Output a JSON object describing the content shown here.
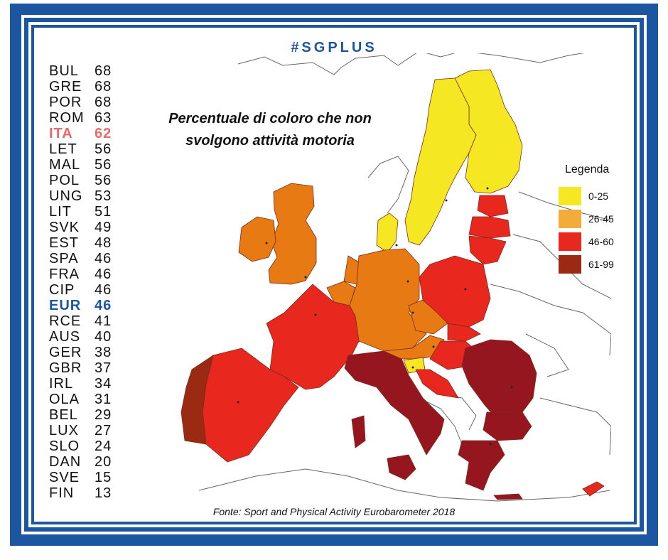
{
  "brand": "#SGPLUS",
  "title_line1": "Percentuale di coloro che non",
  "title_line2": "svolgono attività motoria",
  "source": "Fonte: Sport and Physical Activity Eurobarometer 2018",
  "ranking": [
    {
      "code": "BUL",
      "value": "68"
    },
    {
      "code": "GRE",
      "value": "68"
    },
    {
      "code": "POR",
      "value": "68"
    },
    {
      "code": "ROM",
      "value": "63"
    },
    {
      "code": "ITA",
      "value": "62",
      "highlight": "ita"
    },
    {
      "code": "LET",
      "value": "56"
    },
    {
      "code": "MAL",
      "value": "56"
    },
    {
      "code": "POL",
      "value": "56"
    },
    {
      "code": "UNG",
      "value": "53"
    },
    {
      "code": "LIT",
      "value": "51"
    },
    {
      "code": "SVK",
      "value": "49"
    },
    {
      "code": "EST",
      "value": "48"
    },
    {
      "code": "SPA",
      "value": "46"
    },
    {
      "code": "FRA",
      "value": "46"
    },
    {
      "code": "CIP",
      "value": "46"
    },
    {
      "code": "EUR",
      "value": "46",
      "highlight": "eur"
    },
    {
      "code": "RCE",
      "value": "41"
    },
    {
      "code": "AUS",
      "value": "40"
    },
    {
      "code": "GER",
      "value": "38"
    },
    {
      "code": "GBR",
      "value": "37"
    },
    {
      "code": "IRL",
      "value": "34"
    },
    {
      "code": "OLA",
      "value": "31"
    },
    {
      "code": "BEL",
      "value": "29"
    },
    {
      "code": "LUX",
      "value": "27"
    },
    {
      "code": "SLO",
      "value": "24"
    },
    {
      "code": "DAN",
      "value": "20"
    },
    {
      "code": "SVE",
      "value": "15"
    },
    {
      "code": "FIN",
      "value": "13"
    }
  ],
  "legend": {
    "title": "Legenda",
    "items": [
      {
        "label": "0-25",
        "color": "#f5e822"
      },
      {
        "label": "26-45",
        "color": "#f2ac3a"
      },
      {
        "label": "46-60",
        "color": "#e8281e"
      },
      {
        "label": "61-99",
        "color": "#9a2a12"
      }
    ]
  },
  "colors": {
    "frame": "#1d56a0",
    "low": "#f5e822",
    "mid": "#e87a14",
    "high": "#e8281e",
    "top": "#961620"
  }
}
